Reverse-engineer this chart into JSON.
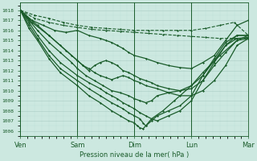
{
  "title": "Pression niveau de la mer( hPa )",
  "ylabel_ticks": [
    1006,
    1007,
    1008,
    1009,
    1010,
    1011,
    1012,
    1013,
    1014,
    1015,
    1016,
    1017,
    1018
  ],
  "xlabels": [
    "Ven",
    "Sam",
    "Dim",
    "Lun",
    "Mar"
  ],
  "bg_color": "#cce8e0",
  "grid_major_color": "#aaccc4",
  "grid_minor_color": "#bbddd6",
  "line_color": "#1a5c2a",
  "ylim": [
    1005.5,
    1018.8
  ],
  "xlim": [
    0,
    4.0
  ],
  "series": [
    {
      "x": [
        0.0,
        0.25,
        0.5,
        0.75,
        1.0,
        1.25,
        1.5,
        1.75,
        2.0,
        2.25,
        2.5,
        2.75,
        3.0,
        3.25,
        3.5,
        3.75,
        4.0
      ],
      "y": [
        1018,
        1017.5,
        1017.2,
        1016.8,
        1016.5,
        1016.3,
        1016.2,
        1016.1,
        1016.0,
        1016.0,
        1016.0,
        1016.0,
        1016.0,
        1016.2,
        1016.5,
        1016.8,
        1015.5
      ],
      "dashed": true,
      "lw": 0.8
    },
    {
      "x": [
        0.0,
        0.25,
        0.5,
        0.75,
        1.0,
        1.25,
        1.5,
        1.75,
        2.0,
        2.25,
        2.5,
        2.75,
        3.0,
        3.25,
        3.5,
        3.75,
        4.0
      ],
      "y": [
        1018,
        1017.2,
        1016.8,
        1016.5,
        1016.3,
        1016.1,
        1016.0,
        1015.9,
        1015.8,
        1015.7,
        1015.6,
        1015.5,
        1015.4,
        1015.3,
        1015.2,
        1015.2,
        1015.2
      ],
      "dashed": true,
      "lw": 0.8
    },
    {
      "x": [
        0.0,
        0.2,
        0.4,
        0.6,
        0.8,
        1.0,
        1.2,
        1.4,
        1.5,
        1.6,
        1.7,
        1.8,
        1.9,
        2.0,
        2.2,
        2.4,
        2.6,
        2.8,
        3.0,
        3.2,
        3.4,
        3.6,
        3.8,
        4.0
      ],
      "y": [
        1018,
        1017.0,
        1016.5,
        1016.0,
        1015.8,
        1016.0,
        1015.5,
        1015.2,
        1015.0,
        1014.8,
        1014.5,
        1014.2,
        1013.8,
        1013.5,
        1013.2,
        1012.8,
        1012.5,
        1012.3,
        1012.2,
        1012.8,
        1013.5,
        1015.0,
        1016.5,
        1017.0
      ],
      "dashed": false,
      "lw": 0.9
    },
    {
      "x": [
        0.0,
        0.2,
        0.5,
        0.8,
        1.0,
        1.1,
        1.2,
        1.3,
        1.4,
        1.5,
        1.6,
        1.7,
        1.8,
        1.9,
        2.0,
        2.1,
        2.2,
        2.4,
        2.6,
        2.8,
        3.0,
        3.2,
        3.4,
        3.6,
        3.8,
        4.0
      ],
      "y": [
        1018,
        1016.8,
        1015.5,
        1014.0,
        1013.0,
        1012.5,
        1012.2,
        1011.8,
        1011.5,
        1011.3,
        1011.1,
        1011.3,
        1011.5,
        1011.3,
        1011.0,
        1010.8,
        1010.5,
        1010.2,
        1009.8,
        1009.5,
        1009.5,
        1010.0,
        1011.0,
        1012.5,
        1014.5,
        1015.2
      ],
      "dashed": false,
      "lw": 0.9
    },
    {
      "x": [
        0.0,
        0.15,
        0.3,
        0.5,
        0.7,
        0.9,
        1.0,
        1.1,
        1.2,
        1.3,
        1.4,
        1.5,
        1.6,
        1.7,
        1.8,
        1.9,
        2.0,
        2.1,
        2.2,
        2.3,
        2.4,
        2.6,
        2.8,
        3.0,
        3.2,
        3.4,
        3.6,
        3.8,
        4.0
      ],
      "y": [
        1018,
        1017.2,
        1016.5,
        1015.5,
        1014.5,
        1013.5,
        1013.0,
        1012.5,
        1012.0,
        1012.5,
        1012.8,
        1013.0,
        1012.8,
        1012.5,
        1012.0,
        1011.8,
        1011.5,
        1011.2,
        1011.0,
        1010.8,
        1010.5,
        1010.2,
        1010.0,
        1010.5,
        1011.5,
        1013.0,
        1014.5,
        1015.5,
        1015.5
      ],
      "dashed": false,
      "lw": 0.9
    },
    {
      "x": [
        0.0,
        0.15,
        0.3,
        0.5,
        0.7,
        0.9,
        1.0,
        1.15,
        1.3,
        1.45,
        1.6,
        1.75,
        1.9,
        2.0,
        2.1,
        2.2,
        2.3,
        2.4,
        2.6,
        2.8,
        3.0,
        3.2,
        3.4,
        3.6,
        3.8,
        4.0
      ],
      "y": [
        1018,
        1017.0,
        1016.0,
        1014.8,
        1013.8,
        1012.8,
        1012.2,
        1011.5,
        1011.0,
        1010.5,
        1010.0,
        1009.8,
        1009.5,
        1009.2,
        1009.0,
        1008.8,
        1009.0,
        1009.5,
        1009.8,
        1010.0,
        1010.2,
        1011.0,
        1012.5,
        1013.8,
        1015.0,
        1015.2
      ],
      "dashed": false,
      "lw": 0.9
    },
    {
      "x": [
        0.0,
        0.15,
        0.3,
        0.5,
        0.7,
        1.0,
        1.2,
        1.4,
        1.5,
        1.6,
        1.7,
        1.8,
        1.9,
        2.0,
        2.1,
        2.2,
        2.3,
        2.4,
        2.6,
        2.8,
        3.0,
        3.2,
        3.4,
        3.6,
        3.8,
        4.0
      ],
      "y": [
        1018,
        1016.8,
        1015.5,
        1014.0,
        1012.8,
        1011.5,
        1010.8,
        1010.2,
        1009.8,
        1009.5,
        1009.2,
        1008.8,
        1008.5,
        1008.2,
        1007.8,
        1007.5,
        1007.2,
        1007.0,
        1007.5,
        1008.0,
        1009.0,
        1011.0,
        1012.8,
        1014.5,
        1015.2,
        1015.3
      ],
      "dashed": false,
      "lw": 0.9
    },
    {
      "x": [
        0.0,
        0.15,
        0.3,
        0.5,
        0.7,
        1.0,
        1.2,
        1.4,
        1.6,
        1.7,
        1.8,
        1.9,
        2.0,
        2.1,
        2.15,
        2.2,
        2.3,
        2.4,
        2.6,
        2.8,
        3.0,
        3.2,
        3.4,
        3.6,
        3.8,
        4.0
      ],
      "y": [
        1018,
        1016.5,
        1015.2,
        1013.5,
        1012.2,
        1011.0,
        1010.2,
        1009.5,
        1008.8,
        1008.5,
        1008.2,
        1007.8,
        1007.5,
        1007.2,
        1006.8,
        1006.5,
        1007.0,
        1007.5,
        1008.0,
        1008.5,
        1009.5,
        1011.5,
        1013.2,
        1014.8,
        1015.5,
        1015.5
      ],
      "dashed": false,
      "lw": 0.9
    },
    {
      "x": [
        0.0,
        0.15,
        0.3,
        0.5,
        0.7,
        1.0,
        1.2,
        1.4,
        1.6,
        1.75,
        1.9,
        2.0,
        2.05,
        2.1,
        2.15,
        2.2,
        2.3,
        2.5,
        2.7,
        3.0,
        3.2,
        3.5,
        3.8,
        4.0
      ],
      "y": [
        1018,
        1016.2,
        1015.0,
        1013.2,
        1011.8,
        1010.5,
        1009.5,
        1008.8,
        1008.0,
        1007.5,
        1007.0,
        1006.8,
        1006.5,
        1006.3,
        1006.2,
        1006.5,
        1007.2,
        1008.0,
        1009.0,
        1010.5,
        1011.8,
        1013.5,
        1015.0,
        1015.5
      ],
      "dashed": false,
      "lw": 0.9
    }
  ]
}
